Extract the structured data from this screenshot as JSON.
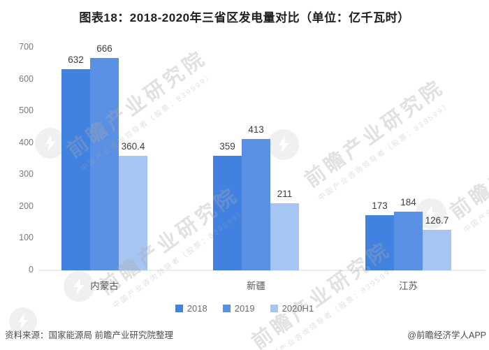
{
  "title": "图表18：2018-2020年三省区发电量对比（单位：亿千瓦时）",
  "chart_data": {
    "type": "bar",
    "title": "图表18：2018-2020年三省区发电量对比",
    "unit": "亿千瓦时",
    "categories": [
      "内蒙古",
      "新疆",
      "江苏"
    ],
    "series": [
      {
        "name": "2018",
        "color": "#4181e0",
        "values": [
          632,
          359,
          173
        ]
      },
      {
        "name": "2019",
        "color": "#5a90e4",
        "values": [
          666,
          413,
          184
        ]
      },
      {
        "name": "2020H1",
        "color": "#a6c5f0",
        "values": [
          360.4,
          211,
          126.7
        ]
      }
    ],
    "ylim": [
      0,
      700
    ],
    "yticks": [
      0,
      100,
      200,
      300,
      400,
      500,
      600,
      700
    ],
    "grid": false,
    "legend_position": "bottom",
    "value_labels": true
  },
  "footer": {
    "source": "资料来源：国家能源局 前瞻产业研究院整理",
    "credit": "@前瞻经济学人APP"
  },
  "watermark": {
    "text": "前瞻产业研究院",
    "subtext": "中国产业咨询领导者（股票：839599）"
  }
}
